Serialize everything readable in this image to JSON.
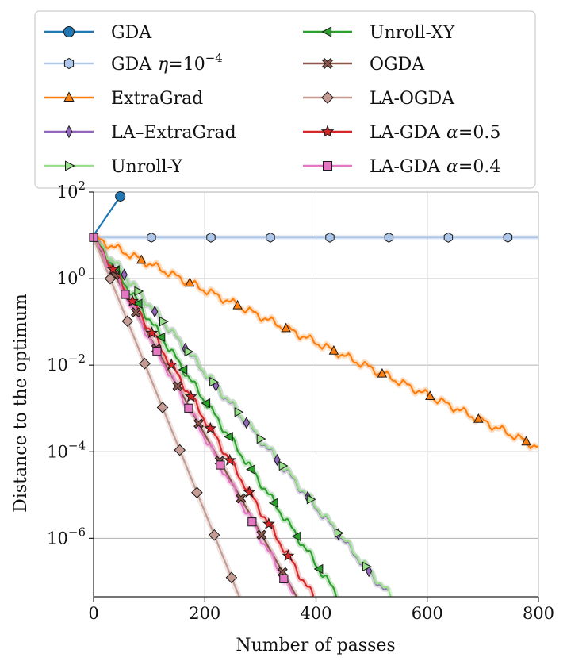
{
  "chart_data": {
    "type": "line",
    "title": "",
    "xlabel": "Number of passes",
    "ylabel": "Distance to the optimum",
    "xlim": [
      0,
      800
    ],
    "ylim_log10": [
      -7.35,
      2
    ],
    "y_scale": "log",
    "grid": true,
    "x_ticks": [
      {
        "value": 0,
        "label": "0"
      },
      {
        "value": 200,
        "label": "200"
      },
      {
        "value": 400,
        "label": "400"
      },
      {
        "value": 600,
        "label": "600"
      },
      {
        "value": 800,
        "label": "800"
      }
    ],
    "y_ticks": [
      {
        "log10": 2,
        "base": "10",
        "exp": "2"
      },
      {
        "log10": 0,
        "base": "10",
        "exp": "0"
      },
      {
        "log10": -2,
        "base": "10",
        "exp": "−2"
      },
      {
        "log10": -4,
        "base": "10",
        "exp": "−4"
      },
      {
        "log10": -6,
        "base": "10",
        "exp": "−6"
      }
    ],
    "legend_position": "top, two columns",
    "series": [
      {
        "key": "gda",
        "name": "GDA",
        "color": "#1f77b4",
        "marker": "circle",
        "wavy": false,
        "band": false,
        "x": [
          0,
          48
        ],
        "log10": [
          1,
          1.9
        ],
        "markers_x": [
          48
        ]
      },
      {
        "key": "gda_eta",
        "name": "GDA",
        "name_suffix": "=10",
        "name_sup": "−4",
        "name_greek": "η",
        "color": "#aec7e8",
        "marker": "hexagon",
        "wavy": false,
        "band": true,
        "x": [
          0,
          800
        ],
        "log10": [
          0.95,
          0.95
        ],
        "markers_x": [
          104,
          211,
          318,
          425,
          531,
          638,
          745
        ]
      },
      {
        "key": "extragrad",
        "name": "ExtraGrad",
        "color": "#ff7f0e",
        "marker": "triangle",
        "wavy": true,
        "band": true,
        "x": [
          0,
          800
        ],
        "log10": [
          0.95,
          -3.9
        ],
        "markers_x": [
          86,
          173,
          259,
          346,
          432,
          519,
          605,
          692,
          778
        ]
      },
      {
        "key": "la_extragrad",
        "name": "LA–ExtraGrad",
        "color": "#9467bd",
        "marker": "diamond-thin",
        "wavy": true,
        "band": true,
        "x": [
          0,
          530
        ],
        "log10": [
          0.95,
          -7.3
        ],
        "markers_x": [
          55,
          110,
          165,
          220,
          275,
          330,
          385,
          440,
          495
        ]
      },
      {
        "key": "unroll_y",
        "name": "Unroll-Y",
        "color": "#98df8a",
        "marker": "triangle-right",
        "wavy": true,
        "band": true,
        "x": [
          0,
          535
        ],
        "log10": [
          0.95,
          -7.35
        ],
        "markers_x": [
          80,
          125,
          170,
          215,
          260,
          300,
          340,
          390,
          440,
          490
        ]
      },
      {
        "key": "unroll_xy",
        "name": "Unroll-XY",
        "color": "#2ca02c",
        "marker": "triangle-left",
        "wavy": true,
        "band": true,
        "x": [
          0,
          440
        ],
        "log10": [
          0.95,
          -7.35
        ],
        "markers_x": [
          40,
          81,
          122,
          162,
          203,
          244,
          284,
          325,
          366,
          406
        ]
      },
      {
        "key": "ogda",
        "name": "OGDA",
        "color": "#8c564b",
        "marker": "x-filled",
        "wavy": false,
        "band": true,
        "x": [
          0,
          365
        ],
        "log10": [
          0.95,
          -7.35
        ],
        "markers_x": [
          38,
          76,
          113,
          151,
          189,
          227,
          265,
          302,
          340
        ]
      },
      {
        "key": "la_ogda",
        "name": "LA-OGDA",
        "color": "#c49c94",
        "marker": "diamond",
        "wavy": false,
        "band": true,
        "x": [
          0,
          262
        ],
        "log10": [
          0.95,
          -7.35
        ],
        "markers_x": [
          30,
          61,
          92,
          124,
          155,
          186,
          217,
          248
        ]
      },
      {
        "key": "la_gda_05",
        "name": "LA-GDA",
        "name_suffix": "=0.5",
        "name_greek": "α",
        "color": "#d62728",
        "marker": "star",
        "wavy": true,
        "band": true,
        "x": [
          0,
          395
        ],
        "log10": [
          0.95,
          -7.35
        ],
        "markers_x": [
          35,
          70,
          105,
          140,
          175,
          210,
          245,
          280,
          315,
          350
        ]
      },
      {
        "key": "la_gda_04",
        "name": "LA-GDA",
        "name_suffix": "=0.4",
        "name_greek": "α",
        "color": "#e377c2",
        "marker": "square",
        "wavy": true,
        "band": true,
        "x": [
          0,
          360
        ],
        "log10": [
          0.95,
          -7.35
        ],
        "markers_x": [
          0,
          57,
          114,
          171,
          228,
          285,
          342
        ]
      }
    ]
  }
}
